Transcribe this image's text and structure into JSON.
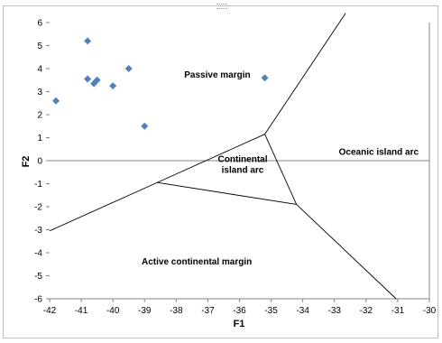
{
  "chart_data": {
    "type": "scatter",
    "title": "",
    "xlabel": "F1",
    "ylabel": "F2",
    "xlim": [
      -42,
      -30
    ],
    "ylim": [
      -6,
      6
    ],
    "x_ticks": [
      -42,
      -41,
      -40,
      -39,
      -38,
      -37,
      -36,
      -35,
      -34,
      -33,
      -32,
      -31,
      -30
    ],
    "y_ticks": [
      -6,
      -5,
      -4,
      -3,
      -2,
      -1,
      0,
      1,
      2,
      3,
      4,
      5,
      6
    ],
    "grid": false,
    "legend": "none",
    "marker": {
      "shape": "diamond",
      "color": "#4f81bd"
    },
    "series": [
      {
        "x": [
          -41.8,
          -40.8,
          -40.8,
          -40.6,
          -40.5,
          -40.0,
          -39.5,
          -39.0,
          -35.2
        ],
        "y": [
          2.6,
          5.2,
          3.55,
          3.35,
          3.5,
          3.25,
          4.0,
          1.5,
          3.6
        ]
      }
    ],
    "boundaries": [
      {
        "from": [
          -42,
          -3.05
        ],
        "to": [
          -38.6,
          -0.95
        ]
      },
      {
        "from": [
          -38.6,
          -0.95
        ],
        "to": [
          -35.2,
          1.15
        ]
      },
      {
        "from": [
          -35.2,
          1.15
        ],
        "to": [
          -32.65,
          6.4
        ]
      },
      {
        "from": [
          -35.2,
          1.15
        ],
        "to": [
          -34.2,
          -1.9
        ]
      },
      {
        "from": [
          -38.6,
          -0.95
        ],
        "to": [
          -34.2,
          -1.9
        ]
      },
      {
        "from": [
          -34.2,
          -1.9
        ],
        "to": [
          -31.05,
          -6
        ]
      }
    ],
    "regions": [
      {
        "lines": [
          "Passive margin"
        ],
        "x": -36.7,
        "y": 3.6
      },
      {
        "lines": [
          "Continental",
          "island arc"
        ],
        "x": -35.9,
        "y": -0.05
      },
      {
        "lines": [
          "Oceanic island arc"
        ],
        "x": -31.6,
        "y": 0.25
      },
      {
        "lines": [
          "Active continental margin"
        ],
        "x": -37.35,
        "y": -4.5
      }
    ],
    "axis_color": "#868686",
    "line_color": "#000000"
  }
}
